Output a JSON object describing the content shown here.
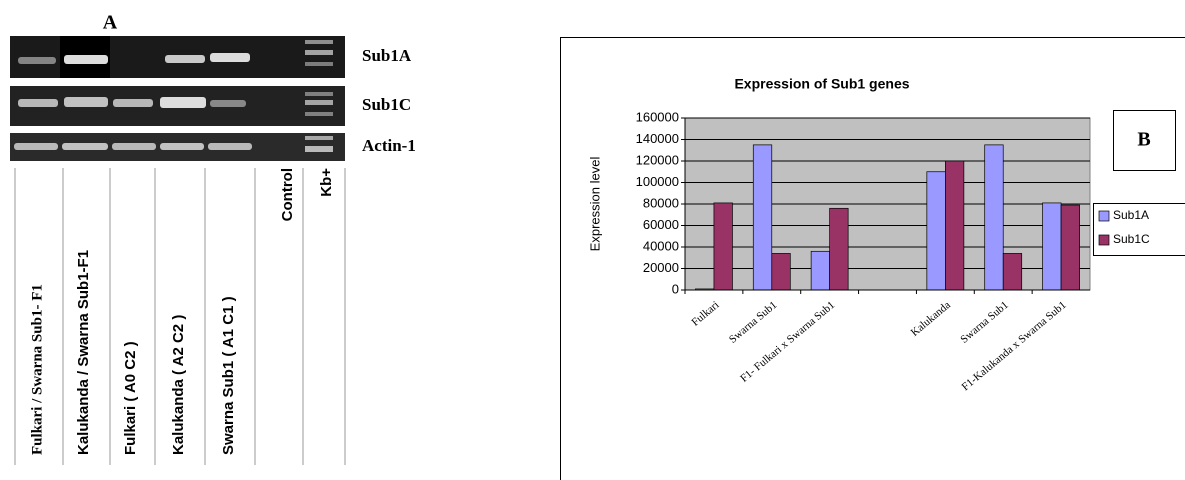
{
  "panel_a": {
    "label": "A",
    "rows": [
      "Sub1A",
      "Sub1C",
      "Actin-1"
    ],
    "lanes": [
      "Fulkari / Swarna Sub1- F1",
      "Kalukanda / Swarna Sub1-F1",
      "Fulkari ( A0 C2 )",
      "Kalukanda ( A2 C2 )",
      "Swarna Sub1 ( A1 C1 )",
      "Control",
      "Kb+"
    ]
  },
  "panel_b_label": "B",
  "chart_data": {
    "type": "bar",
    "title": "Expression of Sub1 genes",
    "y_label": "Expression level",
    "categories": [
      "Fulkari",
      "Swarna Sub1",
      "F1- Fulkari x Swarna Sub1",
      null,
      "Kalukanda",
      "Swarna Sub1",
      "F1-Kalukanda x Swarna Sub1"
    ],
    "series": [
      {
        "name": "Sub1A",
        "color": "#9999ff",
        "values": [
          1000,
          135000,
          36000,
          null,
          110000,
          135000,
          81000
        ]
      },
      {
        "name": "Sub1C",
        "color": "#993366",
        "values": [
          81000,
          34000,
          76000,
          null,
          120000,
          34000,
          79000
        ]
      }
    ],
    "ylim": [
      0,
      160000
    ],
    "yticks": [
      0,
      20000,
      40000,
      60000,
      80000,
      100000,
      120000,
      140000,
      160000
    ],
    "grid": true
  }
}
